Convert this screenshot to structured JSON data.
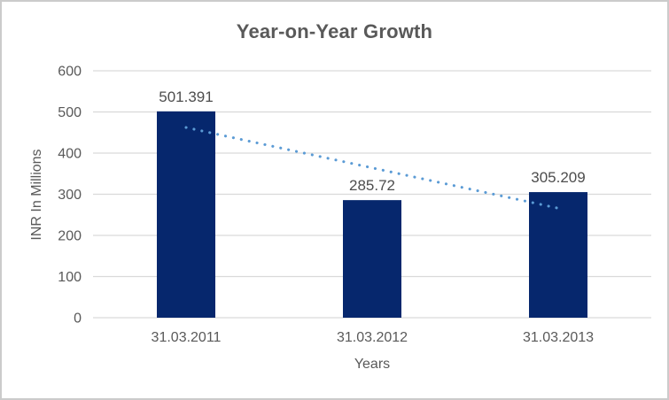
{
  "window": {
    "background_color": "#ffffff",
    "border_color": "#cbcbcb"
  },
  "chart_data": {
    "type": "bar",
    "title": "Year-on-Year Growth",
    "xlabel": "Years",
    "ylabel": "INR In Millions",
    "categories": [
      "31.03.2011",
      "31.03.2012",
      "31.03.2013"
    ],
    "values": [
      501.391,
      285.72,
      305.209
    ],
    "data_labels": [
      "501.391",
      "285.72",
      "305.209"
    ],
    "ylim": [
      0,
      600
    ],
    "ytick_step": 100,
    "ytick_labels": [
      "0",
      "100",
      "200",
      "300",
      "400",
      "500",
      "600"
    ],
    "grid": true,
    "legend": false,
    "colors": {
      "bar": "#06276d",
      "trendline": "#5b9bd5",
      "gridline": "#d9d9d9",
      "axis_line": "#d9d9d9",
      "title_text": "#595959",
      "tick_text": "#595959",
      "data_label_text": "#4d4d4d"
    },
    "trendline": {
      "type": "linear",
      "style": "dotted",
      "endpoints_values": [
        462.2,
        266.0
      ]
    }
  }
}
